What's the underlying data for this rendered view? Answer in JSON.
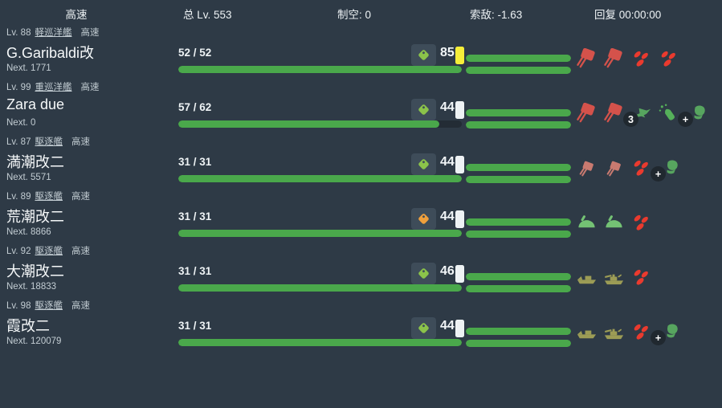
{
  "header": {
    "speed": "高速",
    "total_level": "总 Lv. 553",
    "air_power": "制空: 0",
    "los": "索敌: -1.63",
    "recovery": "回复 00:00:00"
  },
  "colors": {
    "background": "#2e3a46",
    "bar_green": "#4aa84b",
    "bar_track": "#232c35",
    "tag_green": "#8bc34a",
    "tag_orange": "#f0a03c",
    "indicator_yellow": "#f6ee39",
    "indicator_white": "#eef2f4",
    "equip_red": "#d4524b",
    "equip_pink": "#c97a70",
    "equip_bright_red": "#ea3a2e",
    "equip_green": "#57a55f",
    "equip_olive": "#9c9c55"
  },
  "ships": [
    {
      "level": "Lv. 88",
      "type": "軽巡洋艦",
      "speed": "高速",
      "name": "G.Garibaldi改",
      "next": "Next. 1771",
      "hp": "52 / 52",
      "hp_percent": 100,
      "condition": "85",
      "tag_color": "#8bc34a",
      "indicator_color": "#f6ee39",
      "fuel_percent": 100,
      "ammo_percent": 100,
      "equipment": [
        {
          "name": "main-gun-icon",
          "badge": ""
        },
        {
          "name": "main-gun-icon",
          "badge": ""
        },
        {
          "name": "aa-gun-icon",
          "badge": ""
        },
        {
          "name": "aa-gun-icon",
          "badge": ""
        }
      ]
    },
    {
      "level": "Lv. 99",
      "type": "重巡洋艦",
      "speed": "高速",
      "name": "Zara due",
      "next": "Next. 0",
      "hp": "57 / 62",
      "hp_percent": 92,
      "condition": "44",
      "tag_color": "#8bc34a",
      "indicator_color": "#eef2f4",
      "fuel_percent": 100,
      "ammo_percent": 100,
      "equipment": [
        {
          "name": "main-gun-icon",
          "badge": ""
        },
        {
          "name": "main-gun-icon",
          "badge": ""
        },
        {
          "name": "seaplane-icon",
          "badge": "3"
        },
        {
          "name": "ap-shell-icon",
          "badge": ""
        },
        {
          "name": "plus-item-icon",
          "badge": "+"
        }
      ]
    },
    {
      "level": "Lv. 87",
      "type": "駆逐艦",
      "speed": "高速",
      "name": "満潮改二",
      "next": "Next. 5571",
      "hp": "31 / 31",
      "hp_percent": 100,
      "condition": "44",
      "tag_color": "#8bc34a",
      "indicator_color": "#eef2f4",
      "fuel_percent": 100,
      "ammo_percent": 100,
      "equipment": [
        {
          "name": "small-gun-icon",
          "badge": ""
        },
        {
          "name": "small-gun-icon",
          "badge": ""
        },
        {
          "name": "aa-gun-icon",
          "badge": ""
        },
        {
          "name": "plus-item-icon",
          "badge": "+"
        }
      ]
    },
    {
      "level": "Lv. 89",
      "type": "駆逐艦",
      "speed": "高速",
      "name": "荒潮改二",
      "next": "Next. 8866",
      "hp": "31 / 31",
      "hp_percent": 100,
      "condition": "44",
      "tag_color": "#f0a03c",
      "indicator_color": "#eef2f4",
      "fuel_percent": 100,
      "ammo_percent": 100,
      "equipment": [
        {
          "name": "high-angle-gun-icon",
          "badge": ""
        },
        {
          "name": "high-angle-gun-icon",
          "badge": ""
        },
        {
          "name": "aa-gun-icon",
          "badge": ""
        }
      ]
    },
    {
      "level": "Lv. 92",
      "type": "駆逐艦",
      "speed": "高速",
      "name": "大潮改二",
      "next": "Next. 18833",
      "hp": "31 / 31",
      "hp_percent": 100,
      "condition": "46",
      "tag_color": "#8bc34a",
      "indicator_color": "#eef2f4",
      "fuel_percent": 100,
      "ammo_percent": 100,
      "equipment": [
        {
          "name": "landing-craft-icon",
          "badge": ""
        },
        {
          "name": "amphibious-tank-icon",
          "badge": ""
        },
        {
          "name": "aa-gun-icon",
          "badge": ""
        }
      ]
    },
    {
      "level": "Lv. 98",
      "type": "駆逐艦",
      "speed": "高速",
      "name": "霞改二",
      "next": "Next. 120079",
      "hp": "31 / 31",
      "hp_percent": 100,
      "condition": "44",
      "tag_color": "#8bc34a",
      "indicator_color": "#eef2f4",
      "fuel_percent": 100,
      "ammo_percent": 100,
      "equipment": [
        {
          "name": "landing-craft-icon",
          "badge": ""
        },
        {
          "name": "amphibious-tank-icon",
          "badge": ""
        },
        {
          "name": "aa-gun-icon",
          "badge": ""
        },
        {
          "name": "plus-item-icon",
          "badge": "+"
        }
      ]
    }
  ]
}
